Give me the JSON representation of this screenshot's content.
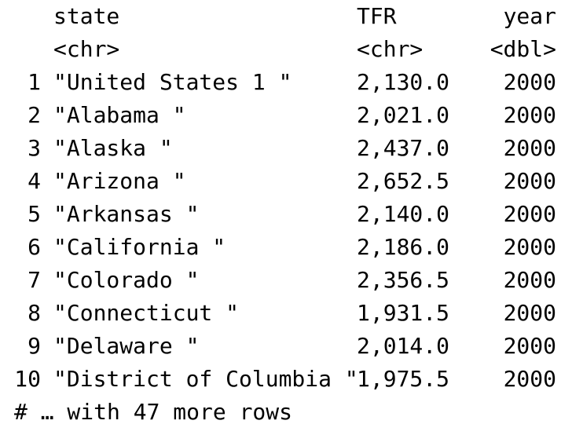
{
  "columns": {
    "state": {
      "name": "state",
      "type": "<chr>"
    },
    "tfr": {
      "name": "TFR",
      "type": "<chr>"
    },
    "year": {
      "name": "year",
      "type": "<dbl>"
    }
  },
  "rows": [
    {
      "idx": "1",
      "state": "\"United States 1 \"",
      "tfr": "2,130.0",
      "year": "2000"
    },
    {
      "idx": "2",
      "state": "\"Alabama \"",
      "tfr": "2,021.0",
      "year": "2000"
    },
    {
      "idx": "3",
      "state": "\"Alaska \"",
      "tfr": "2,437.0",
      "year": "2000"
    },
    {
      "idx": "4",
      "state": "\"Arizona \"",
      "tfr": "2,652.5",
      "year": "2000"
    },
    {
      "idx": "5",
      "state": "\"Arkansas \"",
      "tfr": "2,140.0",
      "year": "2000"
    },
    {
      "idx": "6",
      "state": "\"California \"",
      "tfr": "2,186.0",
      "year": "2000"
    },
    {
      "idx": "7",
      "state": "\"Colorado \"",
      "tfr": "2,356.5",
      "year": "2000"
    },
    {
      "idx": "8",
      "state": "\"Connecticut \"",
      "tfr": "1,931.5",
      "year": "2000"
    },
    {
      "idx": "9",
      "state": "\"Delaware \"",
      "tfr": "2,014.0",
      "year": "2000"
    },
    {
      "idx": "10",
      "state": "\"District of Columbia \"",
      "tfr": "1,975.5",
      "year": "2000"
    }
  ],
  "footer": "# … with 47 more rows"
}
